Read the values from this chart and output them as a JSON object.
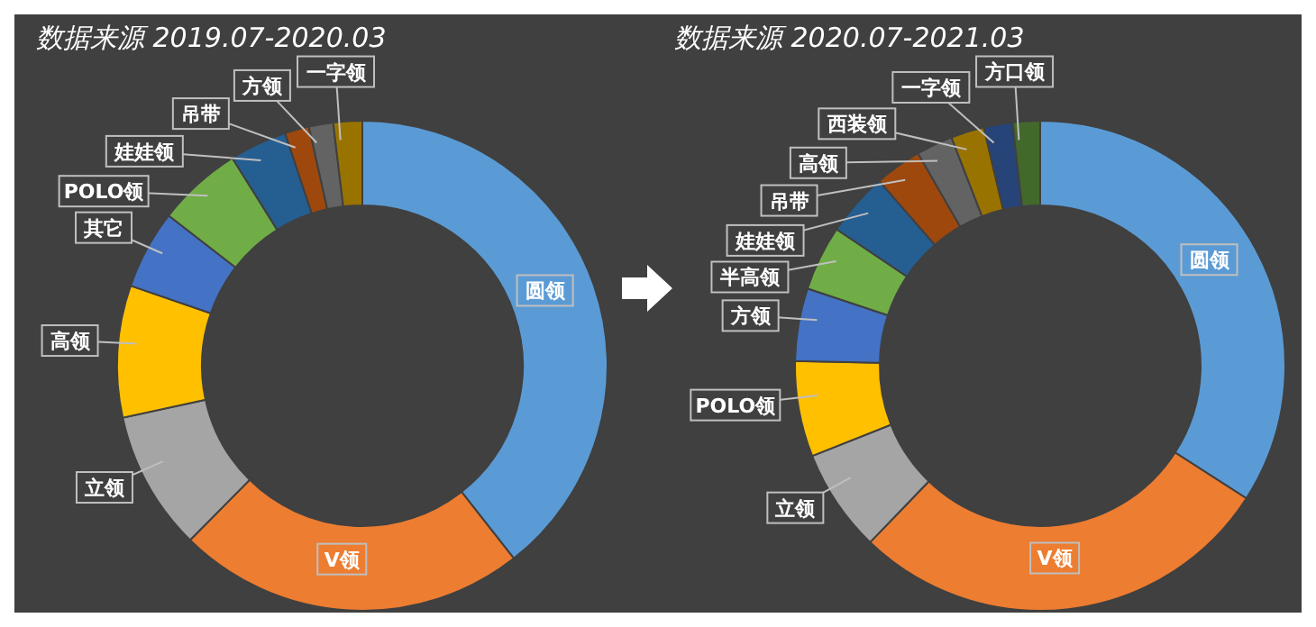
{
  "chart_data": [
    {
      "type": "donut",
      "title": "数据来源 2019.07-2020.03",
      "categories": [
        "圆领",
        "V领",
        "立领",
        "高领",
        "其它",
        "POLO领",
        "娃娃领",
        "吊带",
        "方领",
        "一字领"
      ],
      "values": [
        39.4,
        23,
        9.2,
        8.7,
        5.2,
        5.6,
        3.8,
        1.6,
        1.6,
        1.9
      ],
      "colors": [
        "#5b9bd5",
        "#ed7d31",
        "#a5a5a5",
        "#ffc000",
        "#4472c4",
        "#70ad47",
        "#255e91",
        "#9e480e",
        "#636363",
        "#997300"
      ]
    },
    {
      "type": "donut",
      "title": "数据来源 2020.07-2021.03",
      "categories": [
        "圆领",
        "V领",
        "立领",
        "POLO领",
        "方领",
        "半高领",
        "娃娃领",
        "吊带",
        "高领",
        "西装领",
        "一字领",
        "方口领"
      ],
      "values": [
        34.1,
        28.1,
        6.8,
        6.3,
        4.8,
        4.3,
        4.2,
        3.1,
        2.4,
        2.2,
        1.9,
        1.8
      ],
      "colors": [
        "#5b9bd5",
        "#ed7d31",
        "#a5a5a5",
        "#ffc000",
        "#4472c4",
        "#70ad47",
        "#255e91",
        "#9e480e",
        "#636363",
        "#997300",
        "#264478",
        "#43682b"
      ]
    }
  ]
}
